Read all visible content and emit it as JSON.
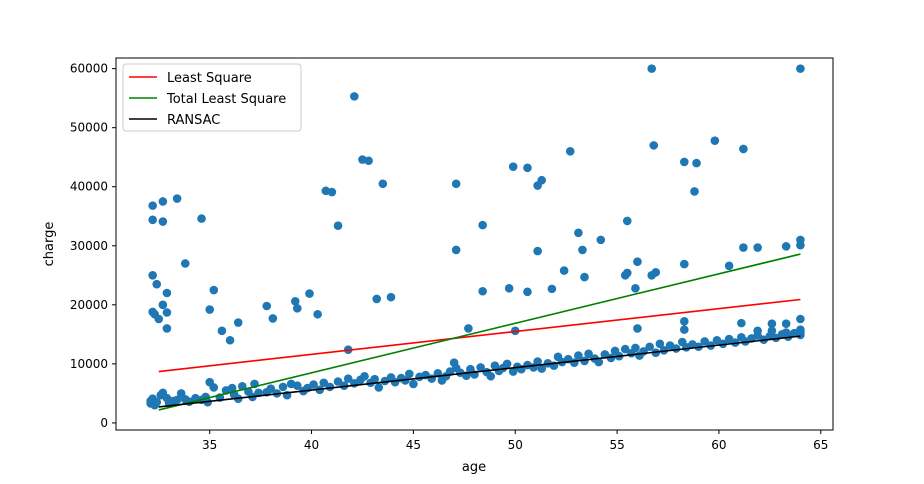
{
  "chart_data": {
    "type": "scatter",
    "xlabel": "age",
    "ylabel": "charge",
    "xlim": [
      30.4,
      65.6
    ],
    "ylim": [
      -1200,
      61800
    ],
    "xticks": [
      35,
      40,
      45,
      50,
      55,
      60,
      65
    ],
    "xtick_labels": [
      "35",
      "40",
      "45",
      "50",
      "55",
      "60",
      "65"
    ],
    "yticks": [
      0,
      10000,
      20000,
      30000,
      40000,
      50000,
      60000
    ],
    "ytick_labels": [
      "0",
      "10000",
      "20000",
      "30000",
      "40000",
      "50000",
      "60000"
    ],
    "grid": false,
    "legend_position": "top-left",
    "point_color": "#1f77b4",
    "lines": [
      {
        "name": "Least Square",
        "color": "#ff0000",
        "x": [
          32.5,
          64
        ],
        "y": [
          8700,
          20900
        ]
      },
      {
        "name": "Total Least Square",
        "color": "#008000",
        "x": [
          32.5,
          64
        ],
        "y": [
          2200,
          28600
        ]
      },
      {
        "name": "RANSAC",
        "color": "#000000",
        "x": [
          32.5,
          64
        ],
        "y": [
          2700,
          14700
        ]
      }
    ],
    "points": [
      [
        32.2,
        36800
      ],
      [
        32.2,
        34400
      ],
      [
        32.7,
        37500
      ],
      [
        32.7,
        34100
      ],
      [
        33.4,
        38000
      ],
      [
        34.6,
        34600
      ],
      [
        32.2,
        25000
      ],
      [
        32.4,
        23500
      ],
      [
        32.9,
        22000
      ],
      [
        33.8,
        27000
      ],
      [
        35.2,
        22500
      ],
      [
        35.0,
        19200
      ],
      [
        32.2,
        18800
      ],
      [
        32.3,
        18400
      ],
      [
        32.5,
        17600
      ],
      [
        32.7,
        20000
      ],
      [
        32.9,
        18700
      ],
      [
        32.9,
        16000
      ],
      [
        35.6,
        15600
      ],
      [
        36.0,
        14000
      ],
      [
        36.4,
        17000
      ],
      [
        37.8,
        19800
      ],
      [
        38.1,
        17700
      ],
      [
        39.2,
        20600
      ],
      [
        39.3,
        19400
      ],
      [
        39.9,
        21900
      ],
      [
        40.3,
        18400
      ],
      [
        40.7,
        39300
      ],
      [
        41.0,
        39100
      ],
      [
        41.3,
        33400
      ],
      [
        42.1,
        55300
      ],
      [
        42.5,
        44600
      ],
      [
        42.8,
        44400
      ],
      [
        43.5,
        40500
      ],
      [
        43.2,
        21000
      ],
      [
        43.9,
        21300
      ],
      [
        41.8,
        12400
      ],
      [
        47.1,
        40500
      ],
      [
        47.1,
        29300
      ],
      [
        47.7,
        16000
      ],
      [
        48.4,
        33500
      ],
      [
        48.4,
        22300
      ],
      [
        49.7,
        22800
      ],
      [
        49.9,
        43400
      ],
      [
        50.6,
        43200
      ],
      [
        51.1,
        40200
      ],
      [
        51.3,
        41100
      ],
      [
        51.1,
        29100
      ],
      [
        50.6,
        22200
      ],
      [
        51.8,
        22700
      ],
      [
        52.7,
        46000
      ],
      [
        52.4,
        25800
      ],
      [
        53.1,
        32200
      ],
      [
        53.3,
        29300
      ],
      [
        53.4,
        24700
      ],
      [
        54.2,
        31000
      ],
      [
        55.4,
        25000
      ],
      [
        55.5,
        25400
      ],
      [
        55.5,
        34200
      ],
      [
        55.9,
        22800
      ],
      [
        56.0,
        27300
      ],
      [
        56.7,
        60000
      ],
      [
        56.8,
        47000
      ],
      [
        56.9,
        25500
      ],
      [
        56.7,
        25000
      ],
      [
        58.3,
        44200
      ],
      [
        58.9,
        44000
      ],
      [
        58.8,
        39200
      ],
      [
        59.8,
        47800
      ],
      [
        58.3,
        26900
      ],
      [
        61.2,
        46400
      ],
      [
        60.5,
        26600
      ],
      [
        61.2,
        29700
      ],
      [
        61.9,
        29700
      ],
      [
        63.3,
        29900
      ],
      [
        64.0,
        60000
      ],
      [
        64.0,
        31000
      ],
      [
        64.0,
        30100
      ],
      [
        50.0,
        15600
      ],
      [
        56.0,
        16000
      ],
      [
        58.3,
        17200
      ],
      [
        58.3,
        15800
      ],
      [
        61.1,
        16900
      ],
      [
        61.9,
        15600
      ],
      [
        62.6,
        16800
      ],
      [
        63.3,
        16800
      ],
      [
        64.0,
        17600
      ],
      [
        62.6,
        15600
      ],
      [
        63.3,
        15300
      ],
      [
        64.0,
        15800
      ],
      [
        32.1,
        3300
      ],
      [
        32.1,
        3700
      ],
      [
        32.2,
        4100
      ],
      [
        32.3,
        3000
      ],
      [
        32.4,
        3500
      ],
      [
        32.6,
        4700
      ],
      [
        32.7,
        5100
      ],
      [
        32.9,
        4200
      ],
      [
        33.0,
        3400
      ],
      [
        33.2,
        3700
      ],
      [
        33.4,
        3900
      ],
      [
        33.6,
        5000
      ],
      [
        33.8,
        4000
      ],
      [
        34.0,
        3600
      ],
      [
        34.3,
        4200
      ],
      [
        34.6,
        3900
      ],
      [
        34.8,
        4400
      ],
      [
        34.9,
        3500
      ],
      [
        35.0,
        6900
      ],
      [
        35.2,
        6000
      ],
      [
        35.5,
        4300
      ],
      [
        35.8,
        5500
      ],
      [
        36.1,
        5900
      ],
      [
        36.2,
        4800
      ],
      [
        36.4,
        4100
      ],
      [
        36.6,
        6200
      ],
      [
        36.9,
        5300
      ],
      [
        37.1,
        4400
      ],
      [
        37.2,
        6600
      ],
      [
        37.4,
        5100
      ],
      [
        37.8,
        5200
      ],
      [
        38.0,
        5800
      ],
      [
        38.3,
        5000
      ],
      [
        38.6,
        6100
      ],
      [
        38.8,
        4700
      ],
      [
        39.0,
        6600
      ],
      [
        39.3,
        6300
      ],
      [
        39.6,
        5400
      ],
      [
        39.8,
        5900
      ],
      [
        40.1,
        6500
      ],
      [
        40.4,
        5600
      ],
      [
        40.6,
        6800
      ],
      [
        40.9,
        6100
      ],
      [
        41.3,
        7000
      ],
      [
        41.6,
        6300
      ],
      [
        41.8,
        7500
      ],
      [
        42.1,
        6700
      ],
      [
        42.4,
        7300
      ],
      [
        42.6,
        7900
      ],
      [
        42.9,
        6800
      ],
      [
        43.1,
        7400
      ],
      [
        43.3,
        6000
      ],
      [
        43.6,
        7100
      ],
      [
        43.9,
        7700
      ],
      [
        44.1,
        6900
      ],
      [
        44.4,
        7600
      ],
      [
        44.6,
        7200
      ],
      [
        44.8,
        8300
      ],
      [
        45.0,
        6600
      ],
      [
        45.3,
        7800
      ],
      [
        45.6,
        8100
      ],
      [
        45.9,
        7500
      ],
      [
        46.2,
        8400
      ],
      [
        46.4,
        7200
      ],
      [
        46.6,
        7900
      ],
      [
        46.8,
        8700
      ],
      [
        47.0,
        10200
      ],
      [
        47.1,
        9300
      ],
      [
        47.3,
        8500
      ],
      [
        47.6,
        8000
      ],
      [
        47.8,
        9100
      ],
      [
        48.0,
        8200
      ],
      [
        48.3,
        9400
      ],
      [
        48.6,
        8600
      ],
      [
        48.8,
        7900
      ],
      [
        49.0,
        9700
      ],
      [
        49.2,
        8800
      ],
      [
        49.4,
        9300
      ],
      [
        49.6,
        10000
      ],
      [
        49.9,
        8700
      ],
      [
        50.1,
        9500
      ],
      [
        50.3,
        9100
      ],
      [
        50.6,
        9800
      ],
      [
        50.9,
        9400
      ],
      [
        51.1,
        10400
      ],
      [
        51.3,
        9200
      ],
      [
        51.6,
        10100
      ],
      [
        51.9,
        9700
      ],
      [
        52.1,
        11200
      ],
      [
        52.3,
        10300
      ],
      [
        52.6,
        10800
      ],
      [
        52.9,
        10200
      ],
      [
        53.1,
        11400
      ],
      [
        53.4,
        10500
      ],
      [
        53.6,
        11700
      ],
      [
        53.9,
        10900
      ],
      [
        54.1,
        10300
      ],
      [
        54.4,
        11600
      ],
      [
        54.7,
        11000
      ],
      [
        54.9,
        12200
      ],
      [
        55.1,
        11300
      ],
      [
        55.4,
        12500
      ],
      [
        55.7,
        11800
      ],
      [
        55.9,
        12700
      ],
      [
        56.1,
        11400
      ],
      [
        56.3,
        12100
      ],
      [
        56.6,
        12900
      ],
      [
        56.9,
        11900
      ],
      [
        57.1,
        13400
      ],
      [
        57.3,
        12300
      ],
      [
        57.6,
        13100
      ],
      [
        57.9,
        12600
      ],
      [
        58.2,
        13700
      ],
      [
        58.4,
        12800
      ],
      [
        58.7,
        13300
      ],
      [
        59.0,
        12900
      ],
      [
        59.3,
        13800
      ],
      [
        59.6,
        13100
      ],
      [
        59.9,
        14000
      ],
      [
        60.2,
        13400
      ],
      [
        60.5,
        14200
      ],
      [
        60.8,
        13600
      ],
      [
        61.1,
        14500
      ],
      [
        61.3,
        13800
      ],
      [
        61.6,
        14300
      ],
      [
        61.9,
        14800
      ],
      [
        62.2,
        14100
      ],
      [
        62.5,
        14700
      ],
      [
        62.8,
        14400
      ],
      [
        63.1,
        15000
      ],
      [
        63.4,
        14600
      ],
      [
        63.7,
        15200
      ],
      [
        64.0,
        14900
      ],
      [
        64.0,
        15400
      ]
    ]
  }
}
